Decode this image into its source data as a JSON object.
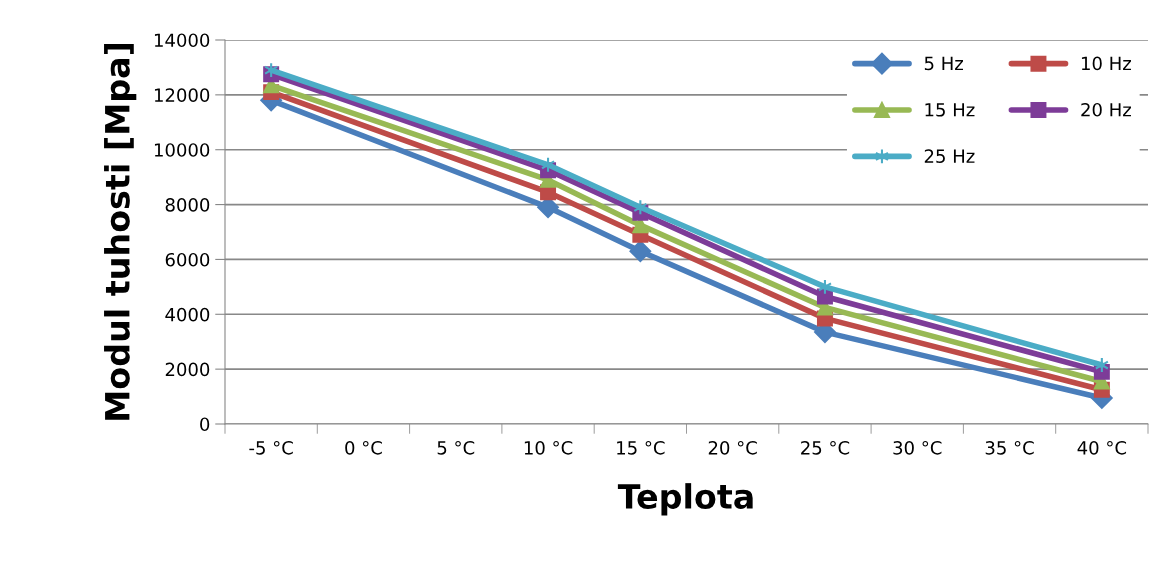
{
  "chart_data": {
    "type": "line",
    "xlabel": "Teplota",
    "ylabel": "Modul tuhosti [Mpa]",
    "categories": [
      "-5 °C",
      "0 °C",
      "5 °C",
      "10 °C",
      "15 °C",
      "20 °C",
      "25 °C",
      "30 °C",
      "35 °C",
      "40 °C"
    ],
    "series": [
      {
        "name": "5 Hz",
        "color": "#4a7ebb",
        "marker": "diamond",
        "values": [
          11800,
          null,
          null,
          7900,
          6300,
          null,
          3350,
          null,
          null,
          950
        ]
      },
      {
        "name": "10 Hz",
        "color": "#be4b48",
        "marker": "square",
        "values": [
          12100,
          null,
          null,
          8450,
          6900,
          null,
          3850,
          null,
          null,
          1250
        ]
      },
      {
        "name": "15 Hz",
        "color": "#98b954",
        "marker": "triangle",
        "values": [
          12350,
          null,
          null,
          8900,
          7250,
          null,
          4250,
          null,
          null,
          1550
        ]
      },
      {
        "name": "20 Hz",
        "color": "#7d3c98",
        "marker": "square",
        "values": [
          12750,
          null,
          null,
          9250,
          7700,
          null,
          4650,
          null,
          null,
          1900
        ]
      },
      {
        "name": "25 Hz",
        "color": "#4bacc6",
        "marker": "cross",
        "values": [
          12900,
          null,
          null,
          9450,
          7900,
          null,
          5000,
          null,
          null,
          2150
        ]
      }
    ],
    "ylim": [
      0,
      14000
    ],
    "yticks": [
      0,
      2000,
      4000,
      6000,
      8000,
      10000,
      12000,
      14000
    ],
    "grid": "y",
    "legend": "top right",
    "line_style": "solid"
  }
}
